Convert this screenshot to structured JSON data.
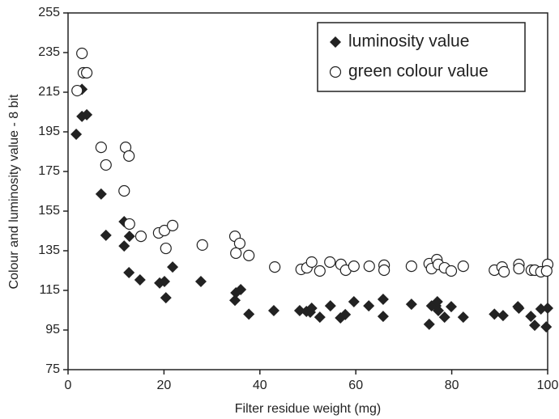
{
  "chart_data": {
    "type": "scatter",
    "x_label": "Filter residue weight (mg)",
    "y_label": "Colour and luminosity value - 8 bit",
    "xlim": [
      0,
      100
    ],
    "xticks": [
      0,
      20,
      40,
      60,
      80,
      100
    ],
    "ylim": [
      75,
      255
    ],
    "yticks": [
      75,
      95,
      115,
      135,
      155,
      175,
      195,
      215,
      235,
      255
    ],
    "legend": "upper right",
    "series": [
      {
        "name": "luminosity value",
        "color": "#222222",
        "marker": "diamond",
        "x": [
          1.7,
          2.9,
          2.9,
          3.9,
          6.9,
          7.9,
          11.7,
          11.7,
          12.8,
          12.7,
          15,
          19.1,
          20.1,
          20.4,
          21.8,
          27.7,
          34.8,
          35,
          36,
          37.7,
          42.9,
          48.3,
          49.7,
          50.5,
          50.8,
          52.5,
          54.7,
          56.8,
          57.8,
          59.6,
          62.7,
          65.7,
          65.7,
          71.6,
          75.3,
          75.8,
          76.7,
          77,
          77.2,
          78.5,
          79.9,
          82.4,
          88.9,
          90.7,
          93.8,
          94,
          96.5,
          97.3,
          98.6,
          99.7,
          100
        ],
        "values": [
          193.8,
          216.5,
          202.8,
          203.6,
          163.6,
          142.8,
          149.7,
          137.4,
          142.3,
          124,
          120.3,
          118.7,
          119.5,
          111.3,
          126.8,
          119.5,
          110,
          113.8,
          115.4,
          103,
          104.8,
          104.8,
          104.4,
          104,
          106,
          101.5,
          107.2,
          101.1,
          102.8,
          109.3,
          107.2,
          101.9,
          110.5,
          108,
          97.9,
          107.2,
          107.2,
          109.3,
          104.8,
          101.5,
          106.8,
          101.5,
          103,
          102.3,
          106.8,
          106,
          101.9,
          97.4,
          105.6,
          96.6,
          106
        ]
      },
      {
        "name": "green colour value",
        "color": "#222222",
        "marker": "circle",
        "x": [
          1.9,
          2.9,
          3.2,
          3.9,
          6.9,
          7.9,
          11.7,
          12,
          12.7,
          12.8,
          15.2,
          18.9,
          20.1,
          20.4,
          21.8,
          28,
          34.8,
          35.8,
          35,
          37.7,
          43.1,
          48.6,
          49.8,
          50.8,
          52.5,
          54.6,
          56.9,
          57.9,
          59.6,
          62.8,
          65.9,
          65.9,
          71.6,
          75.3,
          75.8,
          76.9,
          77.2,
          78.5,
          79.9,
          82.4,
          88.9,
          90.5,
          90.9,
          94,
          94,
          96.6,
          97.3,
          98.6,
          100,
          99.8
        ],
        "values": [
          215.8,
          234.6,
          224.8,
          224.8,
          187.2,
          178.3,
          165.2,
          187.2,
          182.8,
          148.5,
          142.3,
          144,
          145.2,
          136.2,
          147.7,
          137.9,
          142.3,
          138.7,
          133.8,
          132.6,
          126.8,
          125.6,
          126.4,
          129.3,
          124.8,
          129.3,
          128.1,
          125.2,
          127.2,
          127.2,
          127.7,
          125.2,
          127.2,
          128.5,
          126,
          130.5,
          128.1,
          126.4,
          124.8,
          127.2,
          125.2,
          126.8,
          124.4,
          128.1,
          126,
          125.2,
          125.2,
          124.4,
          128.1,
          124.8
        ]
      }
    ]
  }
}
